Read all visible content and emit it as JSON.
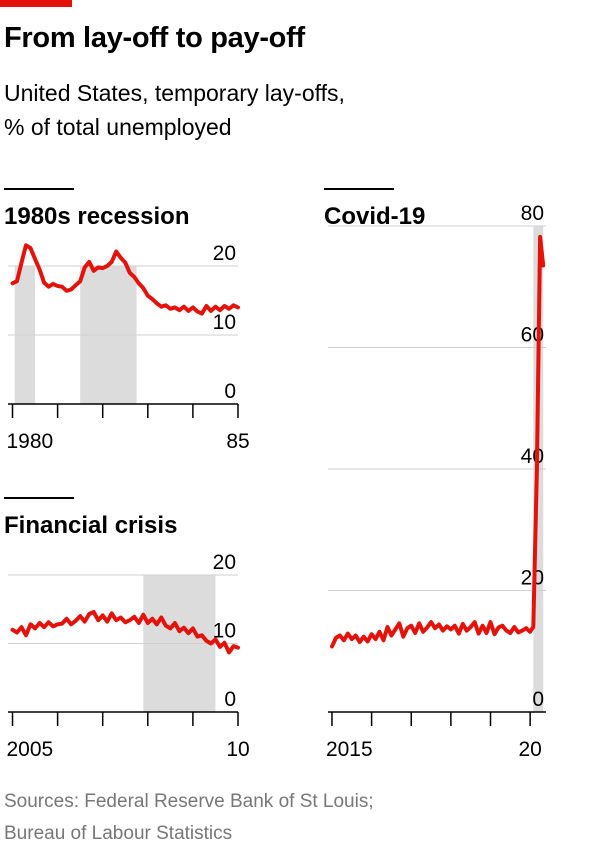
{
  "header": {
    "title": "From lay-off to pay-off",
    "subtitle_line1": "United States, temporary lay-offs,",
    "subtitle_line2": "% of total unemployed"
  },
  "footer": {
    "source_line1": "Sources: Federal Reserve Bank of St Louis;",
    "source_line2": "Bureau of Labour Statistics"
  },
  "colors": {
    "accent": "#e3120b",
    "line": "#e3120b",
    "shade": "#dcdcdc",
    "grid": "#cfcfcf",
    "source_text": "#777777"
  },
  "chart_data": [
    {
      "type": "line",
      "title": "1980s recession",
      "xlim": [
        1979.9,
        1985.0
      ],
      "ylim": [
        0,
        20
      ],
      "yticks": [
        0,
        10,
        20
      ],
      "ytick_labels": [
        "0",
        "10",
        "20"
      ],
      "xticks": [
        1980,
        1981,
        1982,
        1983,
        1984,
        1985
      ],
      "xtick_labels": [
        {
          "value": 1980,
          "label": "1980"
        },
        {
          "value": 1985,
          "label": "85"
        }
      ],
      "shaded": [
        [
          1980.05,
          1980.5
        ],
        [
          1981.5,
          1982.75
        ]
      ],
      "series": [
        {
          "x": [
            1980.0,
            1980.1,
            1980.2,
            1980.3,
            1980.4,
            1980.5,
            1980.6,
            1980.7,
            1980.8,
            1980.9,
            1981.0,
            1981.1,
            1981.2,
            1981.3,
            1981.4,
            1981.5,
            1981.6,
            1981.7,
            1981.8,
            1981.9,
            1982.0,
            1982.1,
            1982.2,
            1982.3,
            1982.4,
            1982.5,
            1982.6,
            1982.7,
            1982.8,
            1982.9,
            1983.0,
            1983.1,
            1983.2,
            1983.3,
            1983.4,
            1983.5,
            1983.6,
            1983.7,
            1983.8,
            1983.9,
            1984.0,
            1984.1,
            1984.2,
            1984.3,
            1984.4,
            1984.5,
            1984.6,
            1984.7,
            1984.8,
            1984.9,
            1985.0
          ],
          "y": [
            17.5,
            17.8,
            20.5,
            23.0,
            22.6,
            21.0,
            19.5,
            17.6,
            17.0,
            17.4,
            17.1,
            17.0,
            16.4,
            16.6,
            17.2,
            17.8,
            19.8,
            20.6,
            19.3,
            19.8,
            19.7,
            20.0,
            20.6,
            22.1,
            21.2,
            20.5,
            19.0,
            18.4,
            17.5,
            16.8,
            15.7,
            15.2,
            14.6,
            14.1,
            14.3,
            13.8,
            14.0,
            13.6,
            14.1,
            13.5,
            14.0,
            13.4,
            13.1,
            14.2,
            13.5,
            14.1,
            13.6,
            14.2,
            13.8,
            14.3,
            14.0
          ]
        }
      ]
    },
    {
      "type": "line",
      "title": "Financial crisis",
      "xlim": [
        2004.9,
        2010.0
      ],
      "ylim": [
        0,
        20
      ],
      "yticks": [
        0,
        10,
        20
      ],
      "ytick_labels": [
        "0",
        "10",
        "20"
      ],
      "xticks": [
        2005,
        2006,
        2007,
        2008,
        2009,
        2010
      ],
      "xtick_labels": [
        {
          "value": 2005,
          "label": "2005"
        },
        {
          "value": 2010,
          "label": "10"
        }
      ],
      "shaded": [
        [
          2007.9,
          2009.5
        ]
      ],
      "series": [
        {
          "x": [
            2005.0,
            2005.1,
            2005.2,
            2005.3,
            2005.4,
            2005.5,
            2005.6,
            2005.7,
            2005.8,
            2005.9,
            2006.0,
            2006.1,
            2006.2,
            2006.3,
            2006.4,
            2006.5,
            2006.6,
            2006.7,
            2006.8,
            2006.9,
            2007.0,
            2007.1,
            2007.2,
            2007.3,
            2007.4,
            2007.5,
            2007.6,
            2007.7,
            2007.8,
            2007.9,
            2008.0,
            2008.1,
            2008.2,
            2008.3,
            2008.4,
            2008.5,
            2008.6,
            2008.7,
            2008.8,
            2008.9,
            2009.0,
            2009.1,
            2009.2,
            2009.3,
            2009.4,
            2009.5,
            2009.6,
            2009.7,
            2009.8,
            2009.9,
            2010.0
          ],
          "y": [
            12.0,
            11.6,
            12.4,
            11.2,
            12.8,
            12.2,
            13.0,
            12.4,
            13.1,
            12.5,
            12.8,
            12.9,
            13.6,
            12.8,
            13.3,
            14.0,
            13.2,
            14.3,
            14.6,
            13.4,
            14.1,
            13.2,
            14.4,
            13.4,
            13.8,
            13.1,
            13.4,
            13.9,
            13.0,
            14.2,
            13.0,
            13.6,
            12.8,
            13.8,
            12.6,
            12.2,
            13.0,
            11.8,
            12.3,
            11.5,
            12.2,
            11.0,
            11.2,
            10.4,
            10.0,
            10.6,
            9.5,
            10.1,
            8.7,
            9.6,
            9.4
          ]
        }
      ]
    },
    {
      "type": "line",
      "title": "Covid-19",
      "xlim": [
        2014.9,
        2020.4
      ],
      "ylim": [
        0,
        80
      ],
      "yticks": [
        0,
        20,
        40,
        60,
        80
      ],
      "ytick_labels": [
        "0",
        "20",
        "40",
        "60",
        "80"
      ],
      "xticks": [
        2015,
        2016,
        2017,
        2018,
        2019,
        2020
      ],
      "xtick_labels": [
        {
          "value": 2015,
          "label": "2015"
        },
        {
          "value": 2020,
          "label": "20"
        }
      ],
      "shaded": [
        [
          2020.08,
          2020.33
        ]
      ],
      "series": [
        {
          "x": [
            2015.0,
            2015.1,
            2015.2,
            2015.3,
            2015.4,
            2015.5,
            2015.6,
            2015.7,
            2015.8,
            2015.9,
            2016.0,
            2016.1,
            2016.2,
            2016.3,
            2016.4,
            2016.5,
            2016.6,
            2016.7,
            2016.8,
            2016.9,
            2017.0,
            2017.1,
            2017.2,
            2017.3,
            2017.4,
            2017.5,
            2017.6,
            2017.7,
            2017.8,
            2017.9,
            2018.0,
            2018.1,
            2018.2,
            2018.3,
            2018.4,
            2018.5,
            2018.6,
            2018.7,
            2018.8,
            2018.9,
            2019.0,
            2019.1,
            2019.2,
            2019.3,
            2019.4,
            2019.5,
            2019.6,
            2019.7,
            2019.8,
            2019.9,
            2020.0,
            2020.08,
            2020.17,
            2020.25,
            2020.33
          ],
          "y": [
            10.8,
            12.2,
            12.6,
            11.8,
            12.9,
            12.0,
            12.6,
            11.5,
            12.4,
            11.6,
            12.8,
            12.0,
            13.2,
            11.8,
            14.0,
            12.6,
            13.6,
            14.6,
            12.4,
            13.8,
            14.2,
            13.0,
            14.6,
            13.2,
            13.9,
            14.8,
            13.8,
            14.4,
            13.4,
            14.1,
            13.6,
            14.2,
            12.9,
            14.5,
            13.4,
            14.0,
            14.8,
            12.9,
            14.2,
            13.0,
            14.8,
            12.8,
            13.9,
            14.2,
            13.4,
            13.0,
            14.0,
            13.1,
            13.4,
            13.8,
            13.2,
            14.0,
            40.0,
            78.2,
            73.5
          ]
        }
      ]
    }
  ]
}
